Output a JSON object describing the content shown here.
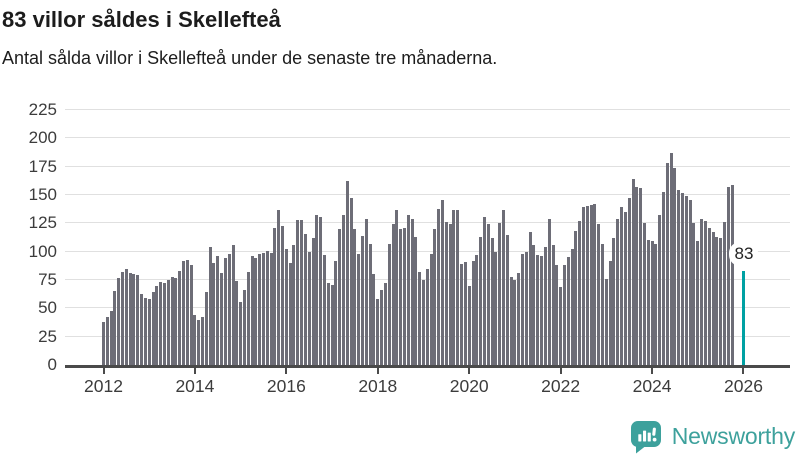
{
  "header": {
    "title": "83 villor såldes i Skellefteå",
    "subtitle": "Antal sålda villor i Skellefteå under de senaste tre månaderna."
  },
  "chart_data": {
    "type": "bar",
    "title": "83 villor såldes i Skellefteå",
    "subtitle": "Antal sålda villor i Skellefteå under de senaste tre månaderna.",
    "x_start": "2012-01",
    "x_end": "2026-01",
    "x_tick_labels": [
      "2012",
      "2014",
      "2016",
      "2018",
      "2020",
      "2022",
      "2024",
      "2026"
    ],
    "months_per_tick": 24,
    "y_ticks": [
      0,
      25,
      50,
      75,
      100,
      125,
      150,
      175,
      200,
      225
    ],
    "ylim": [
      0,
      225
    ],
    "grid": true,
    "bar_color": "#6d6d77",
    "highlight_color": "#00a1a3",
    "highlight_index": 168,
    "highlight_label": "83",
    "values": [
      38,
      42,
      48,
      65,
      77,
      82,
      85,
      81,
      80,
      79,
      63,
      59,
      58,
      64,
      70,
      73,
      72,
      75,
      78,
      77,
      83,
      92,
      93,
      88,
      44,
      40,
      42,
      64,
      104,
      90,
      96,
      81,
      94,
      98,
      106,
      74,
      56,
      66,
      82,
      96,
      94,
      98,
      99,
      101,
      99,
      121,
      137,
      123,
      102,
      90,
      106,
      128,
      128,
      116,
      100,
      112,
      132,
      131,
      97,
      72,
      71,
      92,
      120,
      132,
      162,
      147,
      120,
      98,
      114,
      129,
      107,
      80,
      58,
      66,
      72,
      107,
      124,
      137,
      120,
      121,
      132,
      129,
      113,
      82,
      75,
      85,
      98,
      120,
      138,
      146,
      126,
      124,
      137,
      137,
      89,
      91,
      70,
      92,
      97,
      113,
      131,
      124,
      112,
      100,
      125,
      137,
      115,
      78,
      75,
      81,
      98,
      100,
      117,
      106,
      97,
      96,
      104,
      129,
      106,
      88,
      69,
      88,
      95,
      102,
      118,
      127,
      139,
      140,
      141,
      142,
      124,
      107,
      76,
      92,
      112,
      129,
      139,
      135,
      147,
      164,
      157,
      156,
      125,
      110,
      109,
      107,
      132,
      153,
      178,
      187,
      174,
      154,
      152,
      149,
      146,
      125,
      109,
      129,
      127,
      121,
      117,
      113,
      112,
      126,
      157,
      159,
      null,
      null,
      83
    ]
  },
  "footer": {
    "brand": "Newsworthy"
  },
  "colors": {
    "bar_gray": "#6d6d77",
    "teal": "#00a1a3",
    "logo_teal": "#3da19c",
    "axis": "#4a4a4a",
    "gridline": "#e0e0e0"
  }
}
